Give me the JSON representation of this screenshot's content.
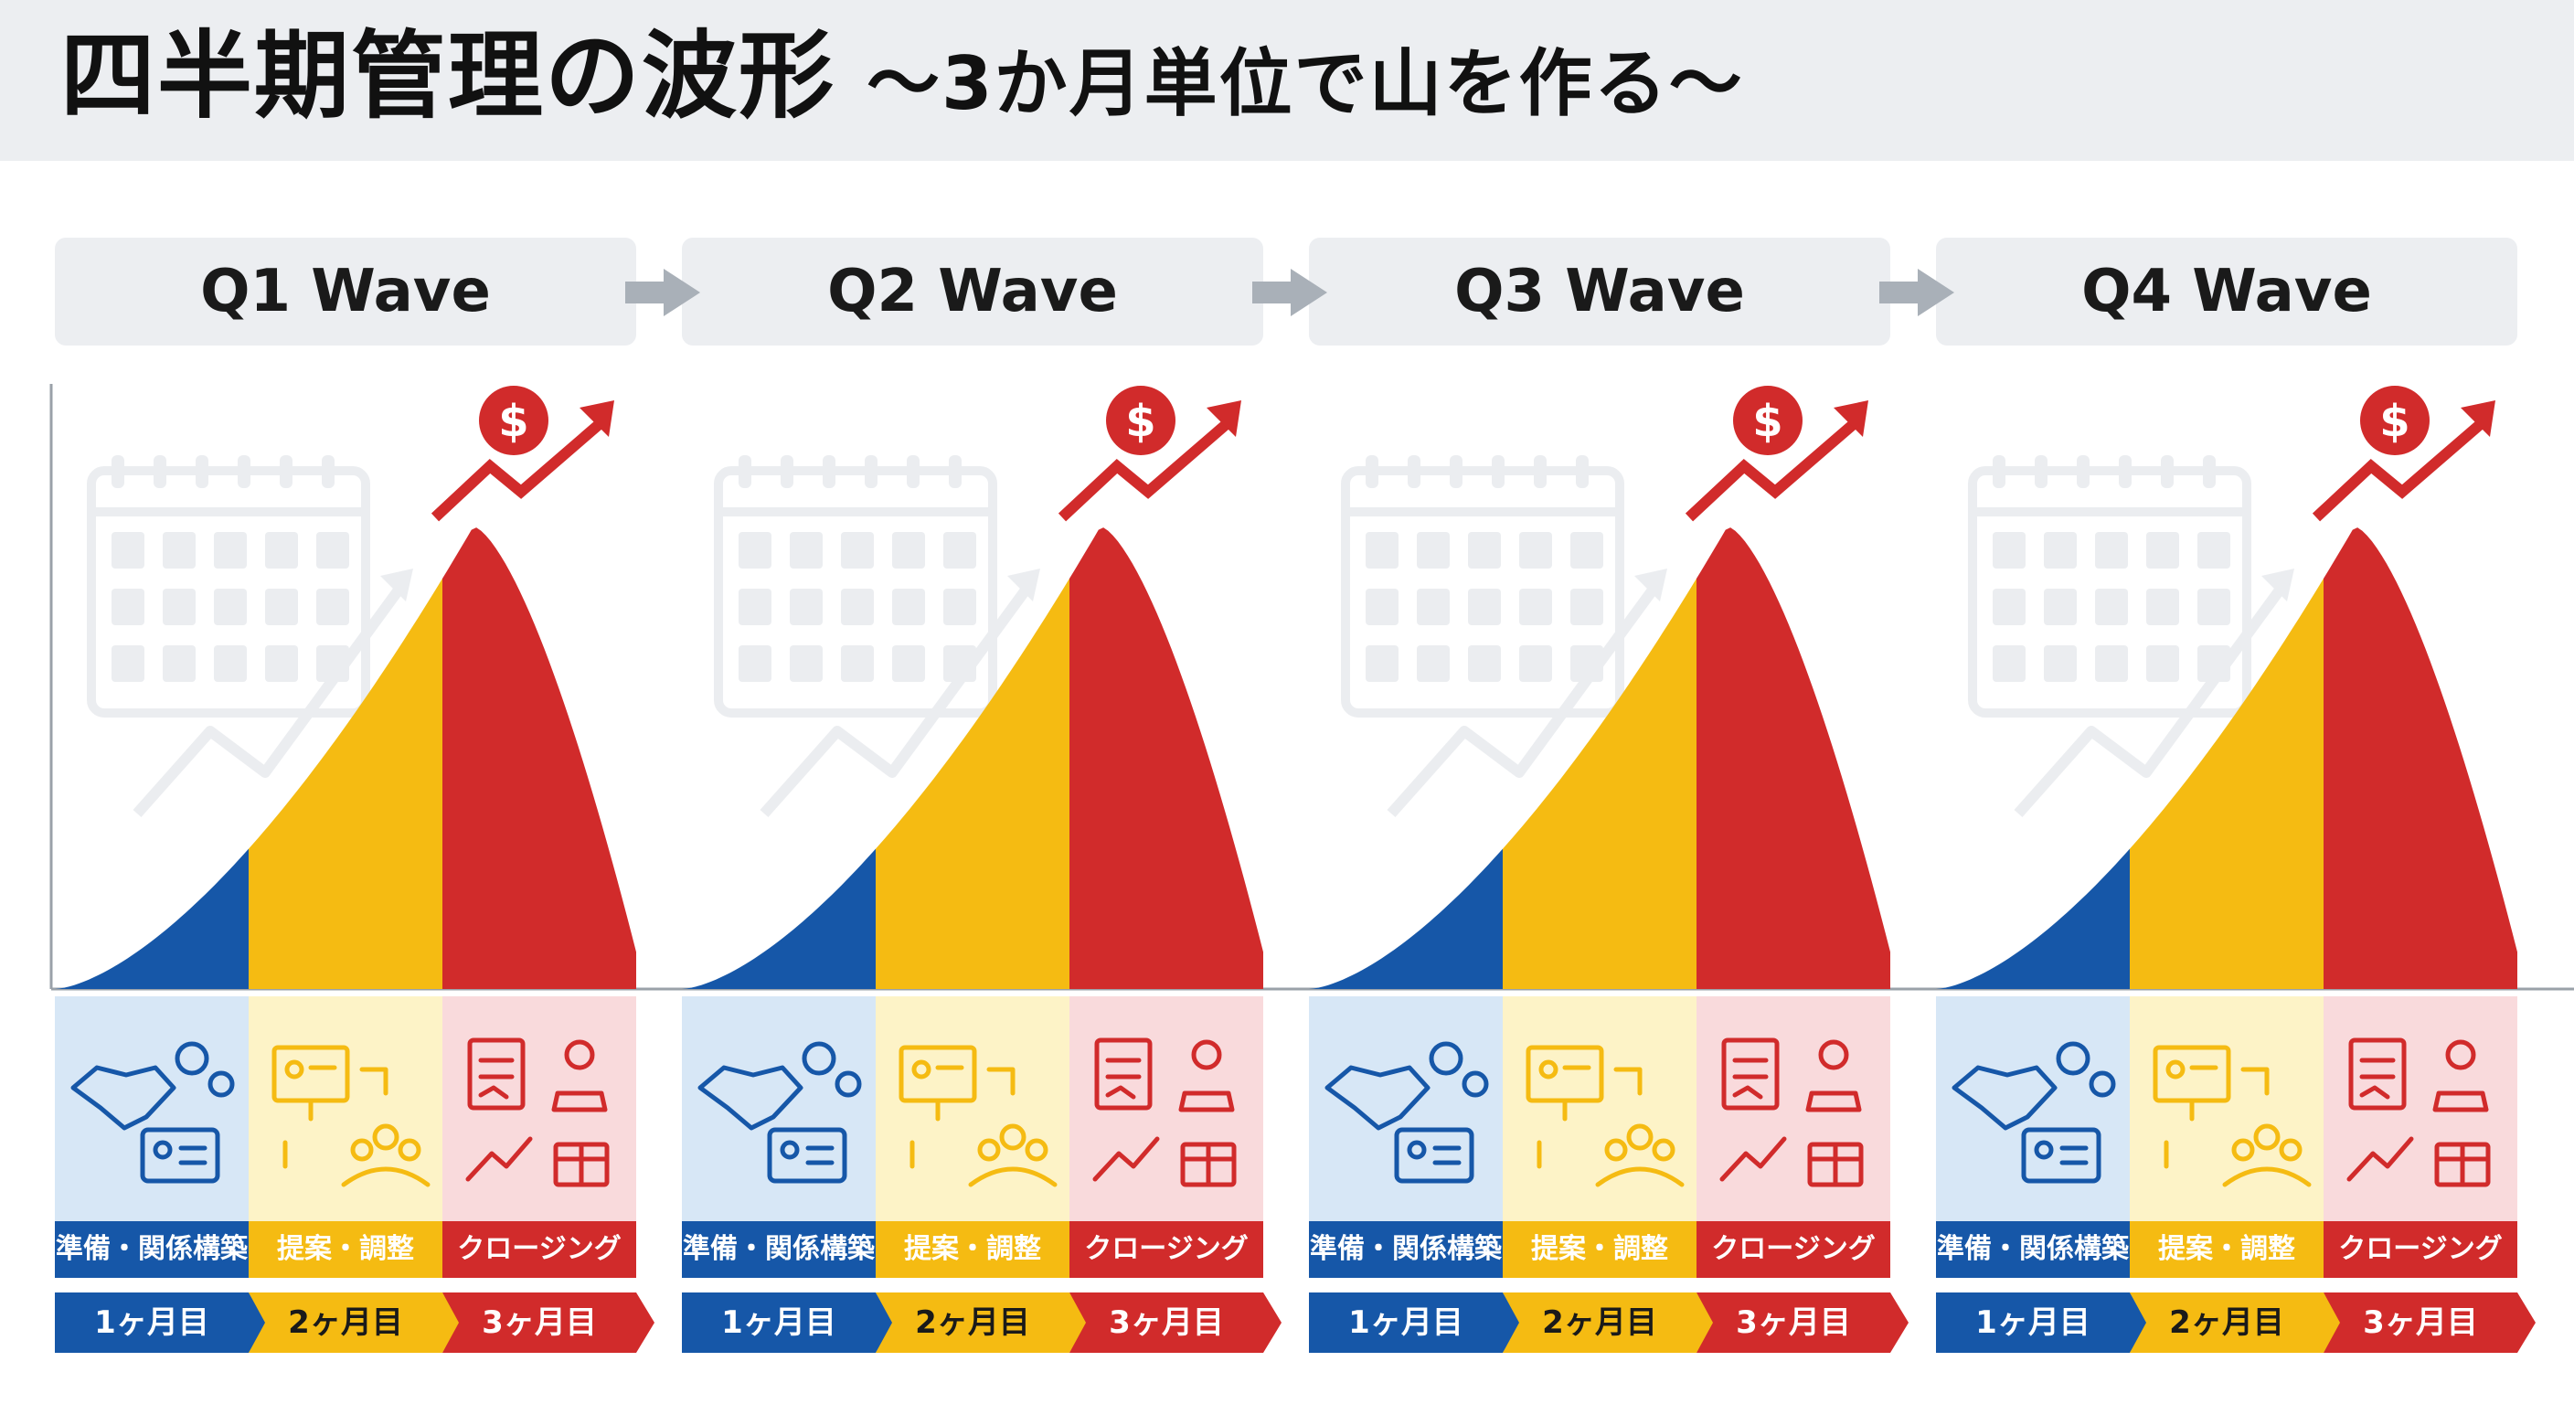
{
  "title": {
    "main": "四半期管理の波形",
    "sub": "〜3か月単位で山を作る〜"
  },
  "waves": [
    {
      "label": "Q1 Wave"
    },
    {
      "label": "Q2 Wave"
    },
    {
      "label": "Q3 Wave"
    },
    {
      "label": "Q4 Wave"
    }
  ],
  "segments": [
    {
      "label": "準備・関係構築",
      "month": "1ヶ月目",
      "color": "#1657a8",
      "light": "#d7e7f6",
      "icon": "handshake-gears-id-card-icon"
    },
    {
      "label": "提案・調整",
      "month": "2ヶ月目",
      "color": "#f5bb12",
      "light": "#fdf3c7",
      "icon": "presentation-team-cycle-icon"
    },
    {
      "label": "クロージング",
      "month": "3ヶ月目",
      "color": "#d12b2b",
      "light": "#f9dadc",
      "icon": "contract-stamp-growth-gift-icon"
    }
  ],
  "peak_icon": "dollar-growth-arrow-icon",
  "background_icon": "calendar-trend-icon",
  "connector_icon": "arrow-right-icon",
  "colors": {
    "header_bg": "#eceef1",
    "panel_bg": "#eceef1",
    "connector": "#a9b0b8",
    "month_dark_text": "#1a1a1a"
  }
}
